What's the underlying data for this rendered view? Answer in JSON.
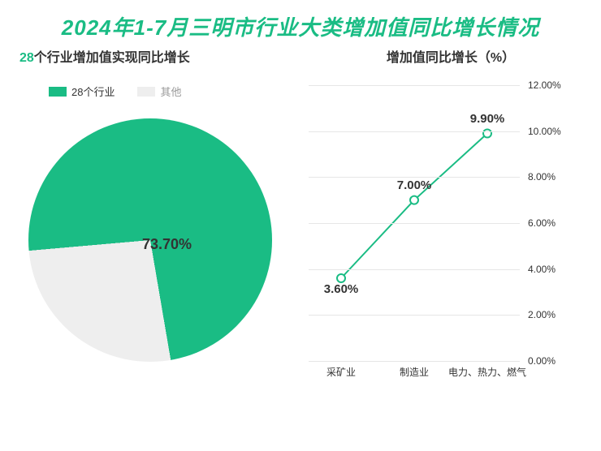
{
  "colors": {
    "accent": "#1abc84",
    "title_dark": "#2a2a2a",
    "text": "#333333",
    "muted": "#999999",
    "grid": "#e6e6e6",
    "pie_other": "#eeeeee",
    "background": "#ffffff"
  },
  "title": {
    "prefix": "2024年1-7月三明市行业大类增加值同比增长情况",
    "fontsize": 26
  },
  "pie_chart": {
    "type": "pie",
    "subtitle_accent": "28",
    "subtitle_rest": "个行业增加值实现同比增长",
    "legend": [
      {
        "label": "28个行业",
        "color": "#1abc84"
      },
      {
        "label": "其他",
        "color": "#eeeeee"
      }
    ],
    "slices": [
      {
        "label": "28个行业",
        "value": 73.7,
        "color": "#1abc84"
      },
      {
        "label": "其他",
        "value": 26.3,
        "color": "#eeeeee"
      }
    ],
    "center_label": "73.70%",
    "label_fontsize": 18,
    "start_angle_deg": -90
  },
  "line_chart": {
    "type": "line",
    "subtitle": "增加值同比增长（%）",
    "categories": [
      "采矿业",
      "制造业",
      "电力、热力、燃气"
    ],
    "values": [
      3.6,
      7.0,
      9.9
    ],
    "value_labels": [
      "3.60%",
      "7.00%",
      "9.90%"
    ],
    "ylim": [
      0,
      12
    ],
    "ytick_step": 2,
    "ytick_labels": [
      "0.00%",
      "2.00%",
      "4.00%",
      "6.00%",
      "8.00%",
      "10.00%",
      "12.00%"
    ],
    "line_color": "#1abc84",
    "line_width": 2,
    "marker_fill": "#ffffff",
    "marker_stroke": "#1abc84",
    "marker_radius": 5,
    "grid_color": "#e6e6e6",
    "label_fontsize": 15,
    "tick_fontsize": 12
  }
}
